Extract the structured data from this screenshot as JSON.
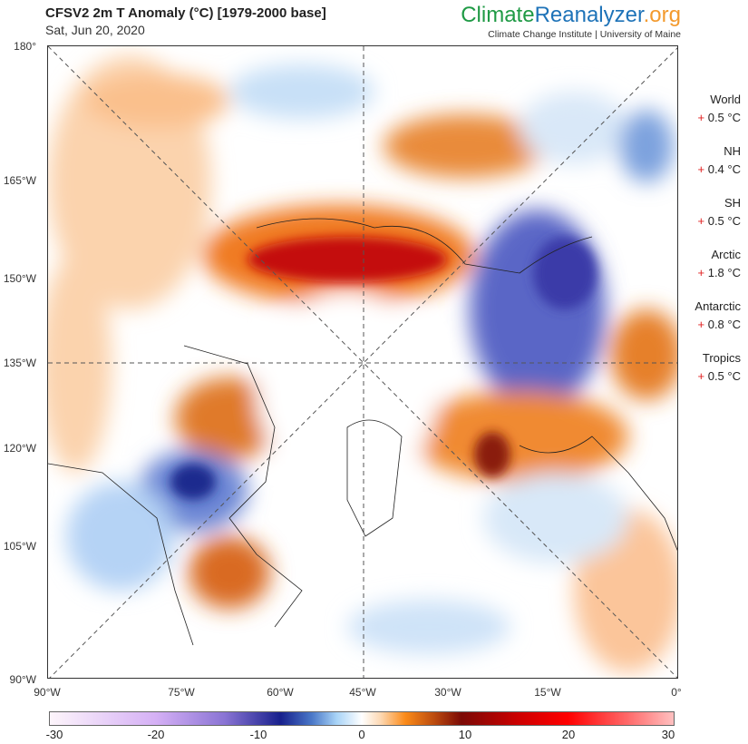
{
  "header": {
    "title": "CFSV2 2m T Anomaly (°C) [1979-2000 base]",
    "date": "Sat, Jun 20, 2020",
    "brand": {
      "part1": "Climate",
      "part2": "Reanalyzer",
      "part3": ".org"
    },
    "institute": "Climate Change Institute | University of Maine"
  },
  "map": {
    "y_labels": [
      "180°",
      "165°W",
      "150°W",
      "135°W",
      "120°W",
      "105°W",
      "90°W"
    ],
    "x_labels": [
      "90°W",
      "75°W",
      "60°W",
      "45°W",
      "30°W",
      "15°W",
      "0°"
    ]
  },
  "stats": [
    {
      "name": "World",
      "sign": "+",
      "value": "0.5 °C"
    },
    {
      "name": "NH",
      "sign": "+",
      "value": "0.4 °C"
    },
    {
      "name": "SH",
      "sign": "+",
      "value": "0.5 °C"
    },
    {
      "name": "Arctic",
      "sign": "+",
      "value": "1.8 °C"
    },
    {
      "name": "Antarctic",
      "sign": "+",
      "value": "0.8 °C"
    },
    {
      "name": "Tropics",
      "sign": "+",
      "value": "0.5 °C"
    }
  ],
  "colorbar": {
    "labels": [
      "-30",
      "-20",
      "-10",
      "0",
      "10",
      "20",
      "30"
    ],
    "range": [
      -30,
      30
    ],
    "unit": "°C"
  }
}
